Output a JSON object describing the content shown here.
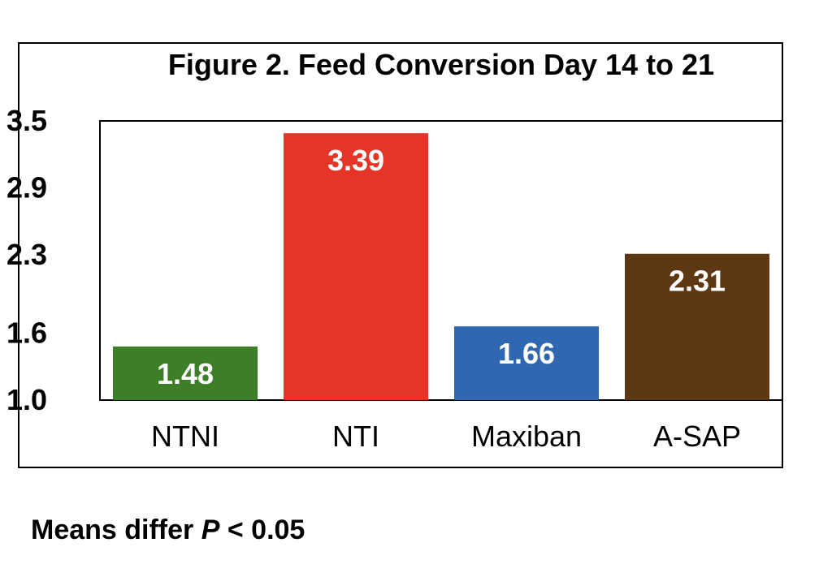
{
  "chart_data": {
    "type": "bar",
    "title": "Figure 2. Feed Conversion Day 14 to 21",
    "categories": [
      "NTNI",
      "NTI",
      "Maxiban",
      "A-SAP"
    ],
    "values": [
      1.48,
      3.39,
      1.66,
      2.31
    ],
    "value_labels": [
      "1.48",
      "3.39",
      "1.66",
      "2.31"
    ],
    "colors": [
      "#3c7f28",
      "#e63426",
      "#2f68b1",
      "#5e3812"
    ],
    "yticks": [
      1.0,
      1.6,
      2.3,
      2.9,
      3.5
    ],
    "ytick_labels": [
      "1.0",
      "1.6",
      "2.3",
      "2.9",
      "3.5"
    ],
    "ylim": [
      1.0,
      3.5
    ],
    "xlabel": "",
    "ylabel": "",
    "grid": false,
    "legend": "none"
  },
  "footnote": {
    "prefix": "Means differ ",
    "variable": "P",
    "suffix": " < 0.05"
  }
}
